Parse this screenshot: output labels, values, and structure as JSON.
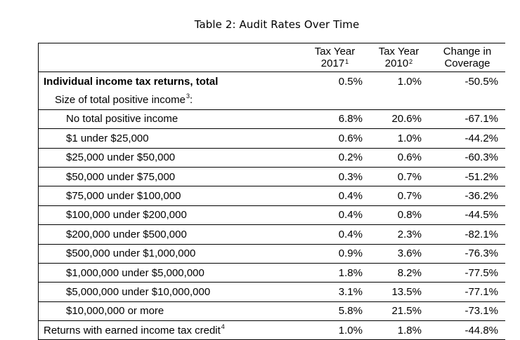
{
  "table": {
    "caption": "Table 2: Audit Rates Over Time",
    "columns": [
      {
        "line1": "Tax Year",
        "line2": "2017",
        "sup": "1"
      },
      {
        "line1": "Tax Year",
        "line2": "2010",
        "sup": "2"
      },
      {
        "line1": "Change in",
        "line2": "Coverage",
        "sup": ""
      }
    ],
    "rows": [
      {
        "label": "Individual income tax returns, total",
        "sup": "",
        "style": "bold",
        "values": [
          "0.5%",
          "1.0%",
          "-50.5%"
        ]
      },
      {
        "label": "Size of total positive income",
        "sup": "3",
        "suffix": ":",
        "style": "indent1",
        "values": [
          "",
          "",
          ""
        ]
      },
      {
        "label": "No total positive income",
        "sup": "",
        "style": "indent2",
        "values": [
          "6.8%",
          "20.6%",
          "-67.1%"
        ]
      },
      {
        "label": "$1 under $25,000",
        "sup": "",
        "style": "indent2",
        "values": [
          "0.6%",
          "1.0%",
          "-44.2%"
        ]
      },
      {
        "label": "$25,000 under $50,000",
        "sup": "",
        "style": "indent2",
        "values": [
          "0.2%",
          "0.6%",
          "-60.3%"
        ]
      },
      {
        "label": "$50,000 under $75,000",
        "sup": "",
        "style": "indent2",
        "values": [
          "0.3%",
          "0.7%",
          "-51.2%"
        ]
      },
      {
        "label": "$75,000 under $100,000",
        "sup": "",
        "style": "indent2",
        "values": [
          "0.4%",
          "0.7%",
          "-36.2%"
        ]
      },
      {
        "label": "$100,000 under $200,000",
        "sup": "",
        "style": "indent2",
        "values": [
          "0.4%",
          "0.8%",
          "-44.5%"
        ]
      },
      {
        "label": "$200,000 under $500,000",
        "sup": "",
        "style": "indent2",
        "values": [
          "0.4%",
          "2.3%",
          "-82.1%"
        ]
      },
      {
        "label": "$500,000 under $1,000,000",
        "sup": "",
        "style": "indent2",
        "values": [
          "0.9%",
          "3.6%",
          "-76.3%"
        ]
      },
      {
        "label": "$1,000,000 under $5,000,000",
        "sup": "",
        "style": "indent2",
        "values": [
          "1.8%",
          "8.2%",
          "-77.5%"
        ]
      },
      {
        "label": "$5,000,000 under $10,000,000",
        "sup": "",
        "style": "indent2",
        "values": [
          "3.1%",
          "13.5%",
          "-77.1%"
        ]
      },
      {
        "label": "$10,000,000 or more",
        "sup": "",
        "style": "indent2",
        "values": [
          "5.8%",
          "21.5%",
          "-73.1%"
        ]
      },
      {
        "label": "Returns with earned income tax credit",
        "sup": "4",
        "style": "plain",
        "values": [
          "1.0%",
          "1.8%",
          "-44.8%"
        ]
      }
    ]
  }
}
